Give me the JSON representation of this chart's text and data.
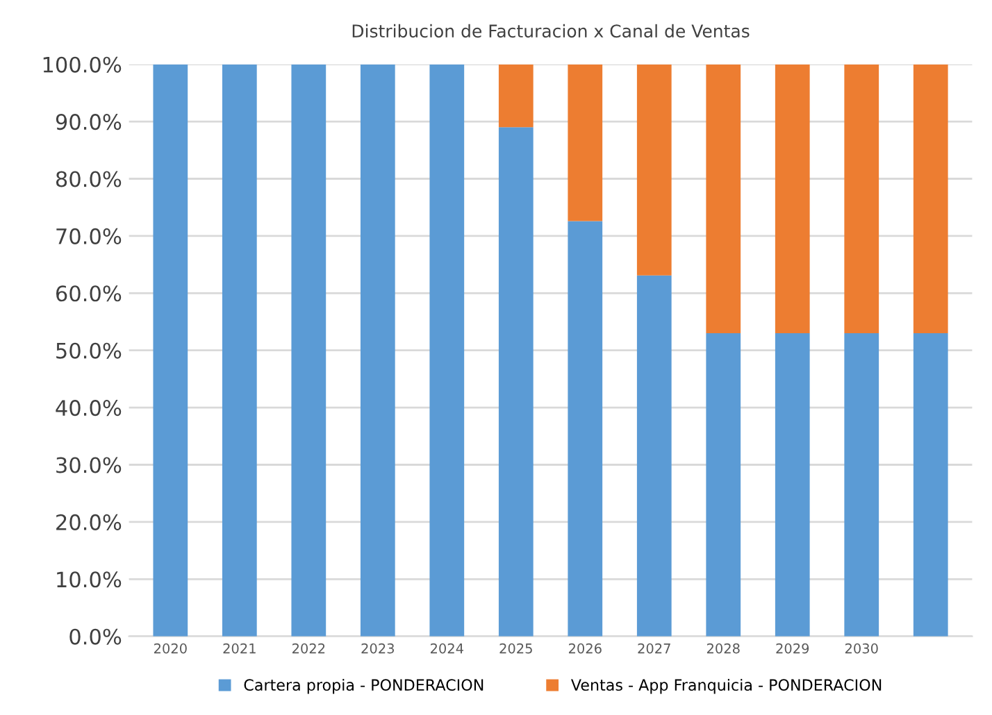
{
  "chart_data": {
    "type": "bar",
    "title": "Distribucion de Facturacion x Canal de Ventas",
    "categories": [
      "2020",
      "2021",
      "2022",
      "2023",
      "2024",
      "2025",
      "2026",
      "2027",
      "2028",
      "2029",
      "2030",
      null
    ],
    "stacked": true,
    "series": [
      {
        "name": "Cartera propia - PONDERACION",
        "color": "#5b9bd5",
        "values": [
          100,
          100,
          100,
          100,
          100,
          89,
          72.6,
          63.1,
          53,
          53,
          53,
          53
        ]
      },
      {
        "name": "Ventas - App Franquicia - PONDERACION",
        "color": "#ed7d31",
        "values": [
          0,
          0,
          0,
          0,
          0,
          11,
          27.4,
          36.9,
          47,
          47,
          47,
          47
        ]
      }
    ],
    "ylim": [
      0,
      100
    ],
    "yticks": [
      {
        "value": 0,
        "label": "0.0%"
      },
      {
        "value": 10,
        "label": "10.0%"
      },
      {
        "value": 20,
        "label": "20.0%"
      },
      {
        "value": 30,
        "label": "30.0%"
      },
      {
        "value": 40,
        "label": "40.0%"
      },
      {
        "value": 50,
        "label": "50.0%"
      },
      {
        "value": 60,
        "label": "60.0%"
      },
      {
        "value": 70,
        "label": "70.0%"
      },
      {
        "value": 80,
        "label": "80.0%"
      },
      {
        "value": 90,
        "label": "90.0%"
      },
      {
        "value": 100,
        "label": "100.0%"
      }
    ],
    "grid": "y",
    "legend": "bottom"
  }
}
